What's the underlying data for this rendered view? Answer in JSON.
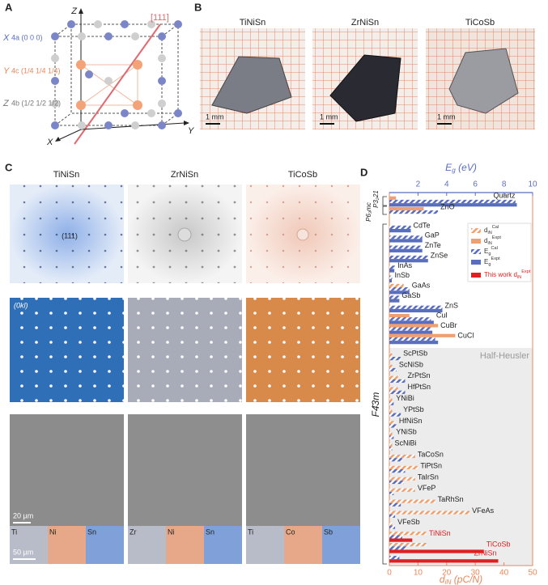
{
  "panel_labels": [
    "A",
    "B",
    "C",
    "D"
  ],
  "panel_a": {
    "axis_z": "Z",
    "axis_y": "Y",
    "axis_x": "X",
    "direction": "[111]",
    "sites": [
      {
        "symbol": "X",
        "wyckoff": "4a (0 0 0)"
      },
      {
        "symbol": "Y",
        "wyckoff": "4c (1/4 1/4 1/4)"
      },
      {
        "symbol": "Z",
        "wyckoff": "4b (1/2 1/2 1/2)"
      }
    ]
  },
  "panel_b": {
    "samples": [
      "TiNiSn",
      "ZrNiSn",
      "TiCoSb"
    ],
    "scale_bar": "1 mm"
  },
  "panel_c": {
    "columns": [
      "TiNiSn",
      "ZrNiSn",
      "TiCoSb"
    ],
    "spot_label": "(111)",
    "plane_label": "(0kl)",
    "scale_bars": [
      "20 µm",
      "50 µm"
    ],
    "elements": [
      [
        "Ti",
        "Ni",
        "Sn"
      ],
      [
        "Zr",
        "Ni",
        "Sn"
      ],
      [
        "Ti",
        "Co",
        "Sb"
      ]
    ]
  },
  "chart_data": {
    "type": "bar",
    "orientation": "horizontal",
    "categories": [
      "Quartz",
      "ZnO",
      "CdTe",
      "GaP",
      "ZnTe",
      "ZnSe",
      "InAs",
      "InSb",
      "GaAs",
      "GaSb",
      "ZnS",
      "CuI",
      "CuBr",
      "CuCl",
      "ScPtSb",
      "ScNiSb",
      "ZrPtSn",
      "HfPtSn",
      "YNiBi",
      "YPtSb",
      "HfNiSn",
      "YNiSb",
      "ScNiBi",
      "TaCoSn",
      "TiPtSn",
      "TaIrSn",
      "VFeP",
      "TaRhSn",
      "VFeAs",
      "VFeSb",
      "TiNiSn",
      "TiCoSb",
      "ZrNiSn"
    ],
    "series": [
      {
        "name": "d_{iN}^{Cal}",
        "color": "#f0a070",
        "hatched": true,
        "axis": "x",
        "values": [
          null,
          null,
          null,
          null,
          null,
          null,
          null,
          null,
          5,
          null,
          null,
          null,
          null,
          null,
          1,
          1,
          3,
          3,
          1,
          1,
          2,
          1,
          1,
          9,
          10,
          9,
          9,
          16,
          28,
          1,
          13,
          13,
          null
        ]
      },
      {
        "name": "d_{iN}^{Expt}",
        "color": "#f0a070",
        "hatched": false,
        "axis": "x",
        "values": [
          2.3,
          12,
          null,
          null,
          null,
          null,
          null,
          null,
          null,
          null,
          null,
          7,
          17,
          23,
          null,
          null,
          null,
          null,
          null,
          null,
          null,
          null,
          null,
          null,
          null,
          null,
          null,
          null,
          null,
          null,
          null,
          null,
          null
        ]
      },
      {
        "name": "E_{g}^{Cal}",
        "color": "#5a6ec0",
        "hatched": true,
        "axis": "x2",
        "values": [
          8.8,
          3.4,
          1.5,
          2.3,
          2.2,
          2.7,
          0.4,
          0.2,
          1.4,
          0.7,
          3.7,
          2.9,
          2.9,
          3.2,
          0.8,
          0.5,
          1.1,
          1.1,
          0.3,
          0.8,
          0.5,
          0.3,
          0.2,
          0.9,
          1.1,
          1.0,
          0.3,
          0.8,
          0.4,
          0.4,
          0.9,
          1.2,
          0.7
        ]
      },
      {
        "name": "E_{g}^{Expt}",
        "color": "#5a6ec0",
        "hatched": false,
        "axis": "x2",
        "values": [
          8.9,
          null,
          1.5,
          2.3,
          2.3,
          2.7,
          0.35,
          0.17,
          1.4,
          0.7,
          3.7,
          3.1,
          3.0,
          3.4,
          null,
          null,
          null,
          null,
          null,
          null,
          null,
          null,
          null,
          null,
          null,
          null,
          null,
          null,
          null,
          null,
          null,
          null,
          null
        ]
      },
      {
        "name": "This work d_{iN}^{Expt}",
        "color": "#e02020",
        "hatched": false,
        "axis": "x",
        "values": [
          null,
          null,
          null,
          null,
          null,
          null,
          null,
          null,
          null,
          null,
          null,
          null,
          null,
          null,
          null,
          null,
          null,
          null,
          null,
          null,
          null,
          null,
          null,
          null,
          null,
          null,
          null,
          null,
          null,
          null,
          8,
          33,
          38
        ]
      }
    ],
    "xlabel": "d_{iN} (pC/N)",
    "xlim": [
      0,
      50
    ],
    "xticks": [
      0,
      10,
      20,
      30,
      40,
      50
    ],
    "x2label": "E_{g} (eV)",
    "x2lim": [
      0,
      10
    ],
    "x2ticks": [
      2,
      4,
      6,
      8,
      10
    ],
    "group_label": "Half-Heusler",
    "space_groups": [
      "P3₂21",
      "P6₃mc",
      "F4̄3m"
    ],
    "legend": "upper right"
  }
}
